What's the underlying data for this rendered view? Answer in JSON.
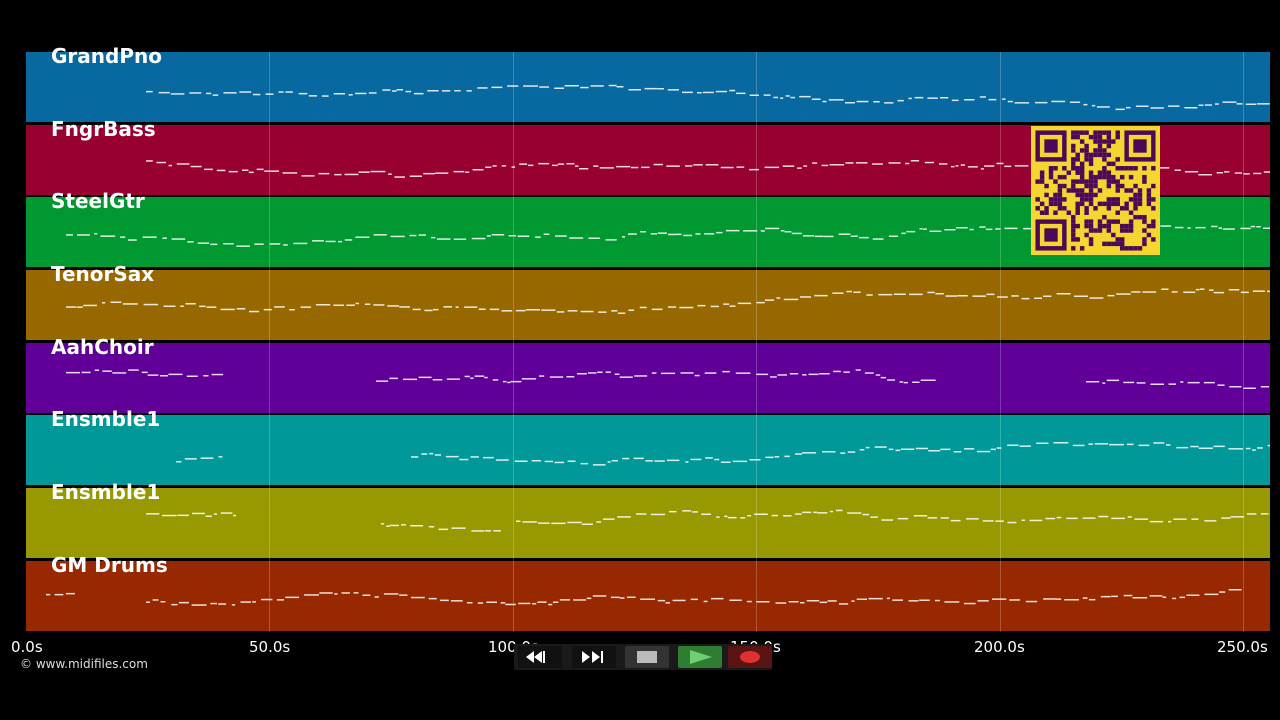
{
  "tracks": [
    {
      "name": "GrandPno",
      "color": "#0868a0"
    },
    {
      "name": "FngrBass",
      "color": "#980030"
    },
    {
      "name": "SteelGtr",
      "color": "#009830"
    },
    {
      "name": "TenorSax",
      "color": "#986800"
    },
    {
      "name": "AahChoir",
      "color": "#600098"
    },
    {
      "name": "Ensmble1",
      "color": "#009898"
    },
    {
      "name": "Ensmble1",
      "color": "#989800"
    },
    {
      "name": "GM Drums",
      "color": "#982800"
    }
  ],
  "timeline": {
    "ticks": [
      "0.0s",
      "50.0s",
      "100.0s",
      "150.0s",
      "200.0s",
      "250.0s"
    ],
    "tick_seconds": [
      0,
      50,
      100,
      150,
      200,
      250
    ],
    "duration_seconds": 255
  },
  "copyright": "© www.midifiles.com",
  "controls": {
    "rewind": "rewind-icon",
    "fast_forward": "fast-forward-icon",
    "stop": "stop-icon",
    "play": "play-icon",
    "record": "record-icon"
  },
  "overlay": {
    "type": "qr-code",
    "fg": "#4a0a58",
    "bg": "#f5d630"
  }
}
